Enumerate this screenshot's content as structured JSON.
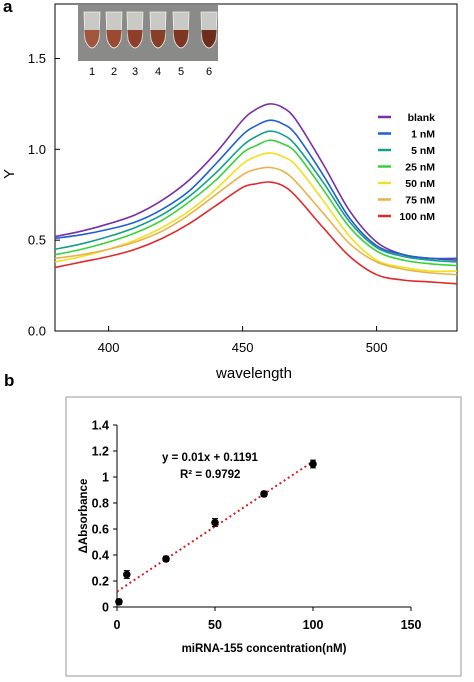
{
  "panels": {
    "a": {
      "label": "a",
      "tube_labels": [
        "1",
        "2",
        "3",
        "4",
        "5",
        "6"
      ],
      "tube_colors": [
        "#a0563a",
        "#9a4a30",
        "#8e3f2a",
        "#874028",
        "#7e3522",
        "#6e2c1c"
      ],
      "chart_data": {
        "type": "line",
        "xlabel": "wavelength",
        "ylabel": "Y",
        "xlim": [
          380,
          530
        ],
        "ylim": [
          0.0,
          1.8
        ],
        "xticks": [
          400,
          450,
          500
        ],
        "yticks": [
          0.0,
          0.5,
          1.0,
          1.5
        ],
        "xtick_labels": [
          "400",
          "450",
          "500"
        ],
        "ytick_labels": [
          "0.0",
          "0.5",
          "1.0",
          "1.5"
        ],
        "grid": false,
        "legend_position": "right",
        "series": [
          {
            "name": "blank",
            "color": "#7a2fa8",
            "x": [
              380,
              390,
              400,
              410,
              420,
              430,
              440,
              450,
              455,
              460,
              465,
              470,
              480,
              490,
              500,
              510,
              520,
              530
            ],
            "y": [
              0.52,
              0.55,
              0.59,
              0.64,
              0.72,
              0.83,
              0.98,
              1.16,
              1.22,
              1.25,
              1.23,
              1.16,
              0.92,
              0.66,
              0.49,
              0.42,
              0.4,
              0.39
            ]
          },
          {
            "name": "1 nM",
            "color": "#1f5fd0",
            "x": [
              380,
              390,
              400,
              410,
              420,
              430,
              440,
              450,
              455,
              460,
              465,
              470,
              480,
              490,
              500,
              510,
              520,
              530
            ],
            "y": [
              0.51,
              0.53,
              0.56,
              0.6,
              0.67,
              0.77,
              0.92,
              1.08,
              1.13,
              1.16,
              1.14,
              1.08,
              0.86,
              0.62,
              0.47,
              0.42,
              0.4,
              0.4
            ]
          },
          {
            "name": "5 nM",
            "color": "#12a08a",
            "x": [
              380,
              390,
              400,
              410,
              420,
              430,
              440,
              450,
              455,
              460,
              465,
              470,
              480,
              490,
              500,
              510,
              520,
              530
            ],
            "y": [
              0.45,
              0.48,
              0.52,
              0.57,
              0.64,
              0.74,
              0.87,
              1.02,
              1.07,
              1.1,
              1.08,
              1.02,
              0.82,
              0.6,
              0.46,
              0.41,
              0.39,
              0.38
            ]
          },
          {
            "name": "25 nM",
            "color": "#3ad23a",
            "x": [
              380,
              390,
              400,
              410,
              420,
              430,
              440,
              450,
              455,
              460,
              465,
              470,
              480,
              490,
              500,
              510,
              520,
              530
            ],
            "y": [
              0.42,
              0.45,
              0.49,
              0.54,
              0.61,
              0.71,
              0.83,
              0.98,
              1.02,
              1.05,
              1.03,
              0.98,
              0.78,
              0.57,
              0.44,
              0.39,
              0.37,
              0.36
            ]
          },
          {
            "name": "50 nM",
            "color": "#f0e11e",
            "x": [
              380,
              390,
              400,
              410,
              420,
              430,
              440,
              450,
              455,
              460,
              465,
              470,
              480,
              490,
              500,
              510,
              520,
              530
            ],
            "y": [
              0.38,
              0.41,
              0.45,
              0.5,
              0.57,
              0.66,
              0.78,
              0.92,
              0.96,
              0.98,
              0.96,
              0.91,
              0.72,
              0.52,
              0.39,
              0.35,
              0.33,
              0.33
            ]
          },
          {
            "name": "75 nM",
            "color": "#e8b24a",
            "x": [
              380,
              390,
              400,
              410,
              420,
              430,
              440,
              450,
              455,
              460,
              465,
              470,
              480,
              490,
              500,
              510,
              520,
              530
            ],
            "y": [
              0.4,
              0.42,
              0.45,
              0.49,
              0.55,
              0.64,
              0.75,
              0.86,
              0.89,
              0.9,
              0.88,
              0.82,
              0.65,
              0.48,
              0.38,
              0.34,
              0.32,
              0.31
            ]
          },
          {
            "name": "100 nM",
            "color": "#e02a2a",
            "x": [
              380,
              390,
              400,
              410,
              420,
              430,
              440,
              450,
              455,
              460,
              465,
              470,
              480,
              490,
              500,
              510,
              520,
              530
            ],
            "y": [
              0.35,
              0.38,
              0.41,
              0.45,
              0.51,
              0.59,
              0.69,
              0.79,
              0.81,
              0.82,
              0.8,
              0.74,
              0.57,
              0.41,
              0.31,
              0.28,
              0.27,
              0.26
            ]
          }
        ]
      }
    },
    "b": {
      "label": "b",
      "chart_data": {
        "type": "scatter",
        "xlabel": "miRNA-155 concentration(nM)",
        "ylabel": "ΔAbsorbance",
        "xlim": [
          0,
          150
        ],
        "ylim": [
          0,
          1.4
        ],
        "xticks": [
          0,
          50,
          100,
          150
        ],
        "yticks": [
          0,
          0.2,
          0.4,
          0.6,
          0.8,
          1,
          1.2,
          1.4
        ],
        "xtick_labels": [
          "0",
          "50",
          "100",
          "150"
        ],
        "ytick_labels": [
          "0",
          "0.2",
          "0.4",
          "0.6",
          "0.8",
          "1",
          "1.2",
          "1.4"
        ],
        "grid": false,
        "points": [
          {
            "x": 1,
            "y": 0.04,
            "err": 0.02
          },
          {
            "x": 5,
            "y": 0.25,
            "err": 0.03
          },
          {
            "x": 25,
            "y": 0.37,
            "err": 0.02
          },
          {
            "x": 50,
            "y": 0.65,
            "err": 0.03
          },
          {
            "x": 75,
            "y": 0.87,
            "err": 0.02
          },
          {
            "x": 100,
            "y": 1.1,
            "err": 0.03
          }
        ],
        "fit": {
          "slope": 0.01,
          "intercept": 0.1191,
          "x_range": [
            0,
            100
          ],
          "color": "#d42020"
        },
        "equation": "y = 0.01x + 0.1191",
        "r2_label": "R² = 0.9792"
      }
    }
  }
}
